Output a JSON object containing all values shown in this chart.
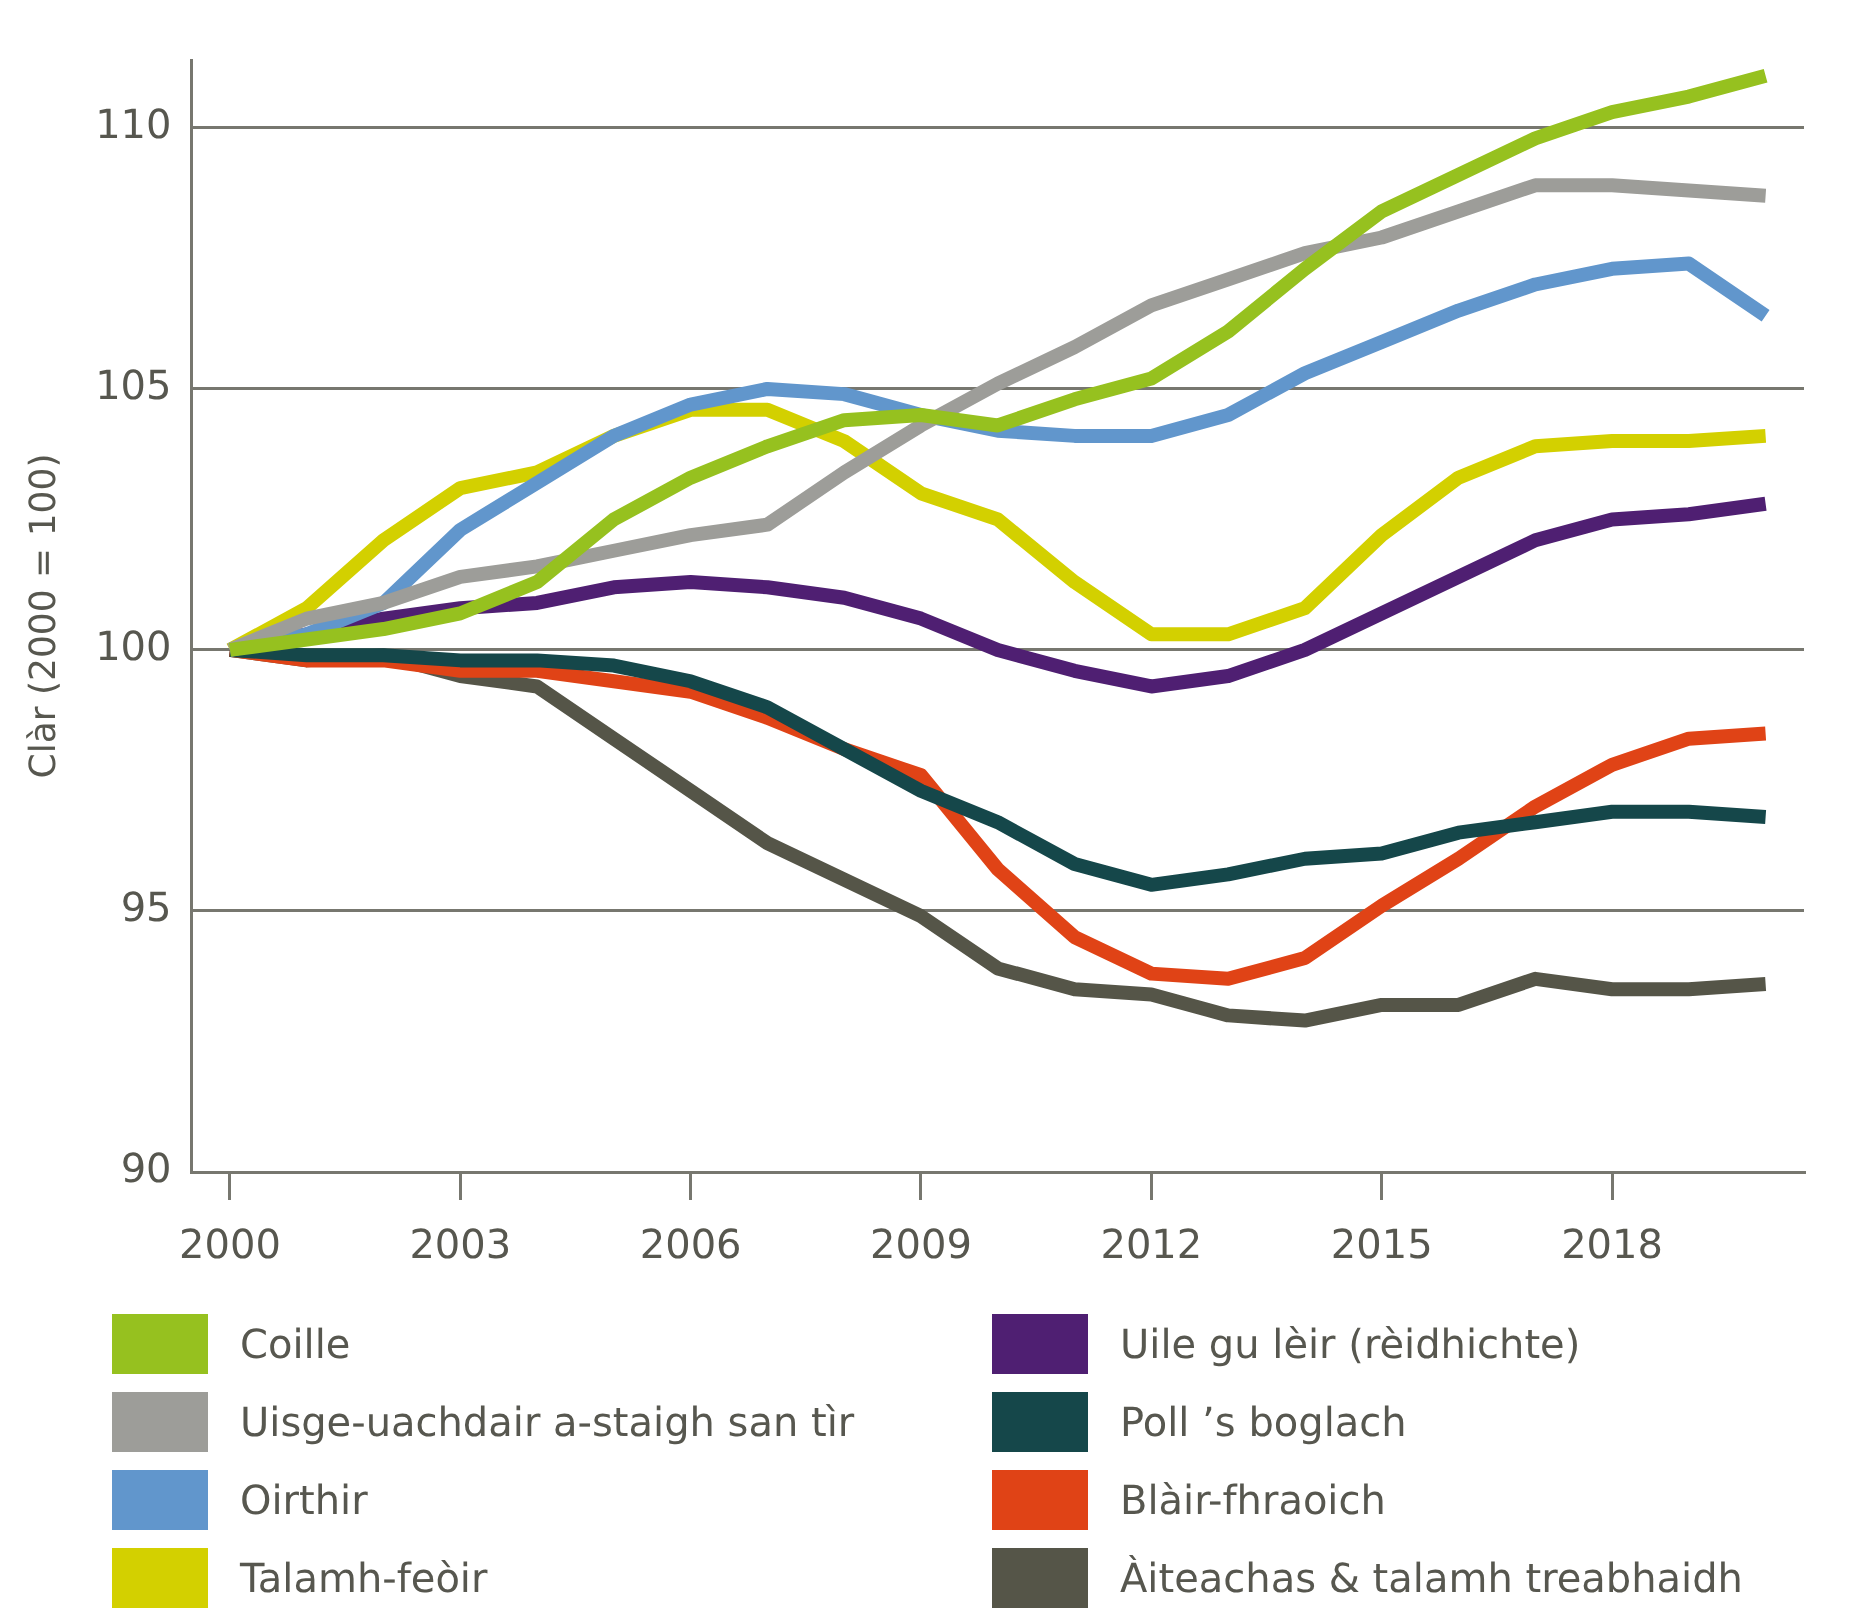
{
  "chart_data": {
    "type": "line",
    "ylabel": "Clàr (2000 = 100)",
    "x": [
      2000,
      2001,
      2002,
      2003,
      2004,
      2005,
      2006,
      2007,
      2008,
      2009,
      2010,
      2011,
      2012,
      2013,
      2014,
      2015,
      2016,
      2017,
      2018,
      2019,
      2020
    ],
    "xlim": [
      1999.5,
      2020.5
    ],
    "xticks": [
      2000,
      2003,
      2006,
      2009,
      2012,
      2015,
      2018
    ],
    "ylim": [
      90,
      111.3
    ],
    "yticks": [
      90,
      95,
      100,
      105,
      110
    ],
    "grid": "y",
    "legend": "bottom",
    "marker": "none",
    "line_style": "solid",
    "series": [
      {
        "name": "Coille",
        "color": "#96c11f",
        "values": [
          100,
          100.2,
          100.4,
          100.7,
          101.3,
          102.5,
          103.3,
          103.9,
          104.4,
          104.5,
          104.3,
          104.8,
          105.2,
          106.1,
          107.3,
          108.4,
          109.1,
          109.8,
          110.3,
          110.6,
          111.0
        ]
      },
      {
        "name": "Uisge-uachdair a-staigh san tìr",
        "color": "#9d9d99",
        "values": [
          100,
          100.6,
          100.9,
          101.4,
          101.6,
          101.9,
          102.2,
          102.4,
          103.4,
          104.3,
          105.1,
          105.8,
          106.6,
          107.1,
          107.6,
          107.9,
          108.4,
          108.9,
          108.9,
          108.8,
          108.7
        ]
      },
      {
        "name": "Oirthir",
        "color": "#6196cc",
        "values": [
          100,
          100.3,
          100.9,
          102.3,
          103.2,
          104.1,
          104.7,
          105.0,
          104.9,
          104.5,
          104.2,
          104.1,
          104.1,
          104.5,
          105.3,
          105.9,
          106.5,
          107.0,
          107.3,
          107.4,
          106.4
        ]
      },
      {
        "name": "Talamh-feòir",
        "color": "#d3d000",
        "values": [
          100,
          100.8,
          102.1,
          103.1,
          103.4,
          104.1,
          104.6,
          104.6,
          104.0,
          103.0,
          102.5,
          101.3,
          100.3,
          100.3,
          100.8,
          102.2,
          103.3,
          103.9,
          104.0,
          104.0,
          104.1
        ]
      },
      {
        "name": "Uile gu lèir (rèidhichte)",
        "color": "#4f1f72",
        "values": [
          100,
          100.3,
          100.6,
          100.8,
          100.9,
          101.2,
          101.3,
          101.2,
          101.0,
          100.6,
          100.0,
          99.6,
          99.3,
          99.5,
          100.0,
          100.7,
          101.4,
          102.1,
          102.5,
          102.6,
          102.8
        ]
      },
      {
        "name": "Poll ’s boglach",
        "color": "#15474a",
        "values": [
          100,
          99.9,
          99.9,
          99.8,
          99.8,
          99.7,
          99.4,
          98.9,
          98.1,
          97.3,
          96.7,
          95.9,
          95.5,
          95.7,
          96.0,
          96.1,
          96.5,
          96.7,
          96.9,
          96.9,
          96.8
        ]
      },
      {
        "name": "Blàir-fhraoich",
        "color": "#e04316",
        "values": [
          100,
          99.8,
          99.8,
          99.6,
          99.6,
          99.4,
          99.2,
          98.7,
          98.1,
          97.6,
          95.8,
          94.5,
          93.8,
          93.7,
          94.1,
          95.1,
          96.0,
          97.0,
          97.8,
          98.3,
          98.4
        ]
      },
      {
        "name": "Àiteachas & talamh treabhaidh",
        "color": "#555548",
        "values": [
          100,
          99.8,
          99.9,
          99.5,
          99.3,
          98.3,
          97.3,
          96.3,
          95.6,
          94.9,
          93.9,
          93.5,
          93.4,
          93.0,
          92.9,
          93.2,
          93.2,
          93.7,
          93.5,
          93.5,
          93.6
        ]
      }
    ]
  }
}
